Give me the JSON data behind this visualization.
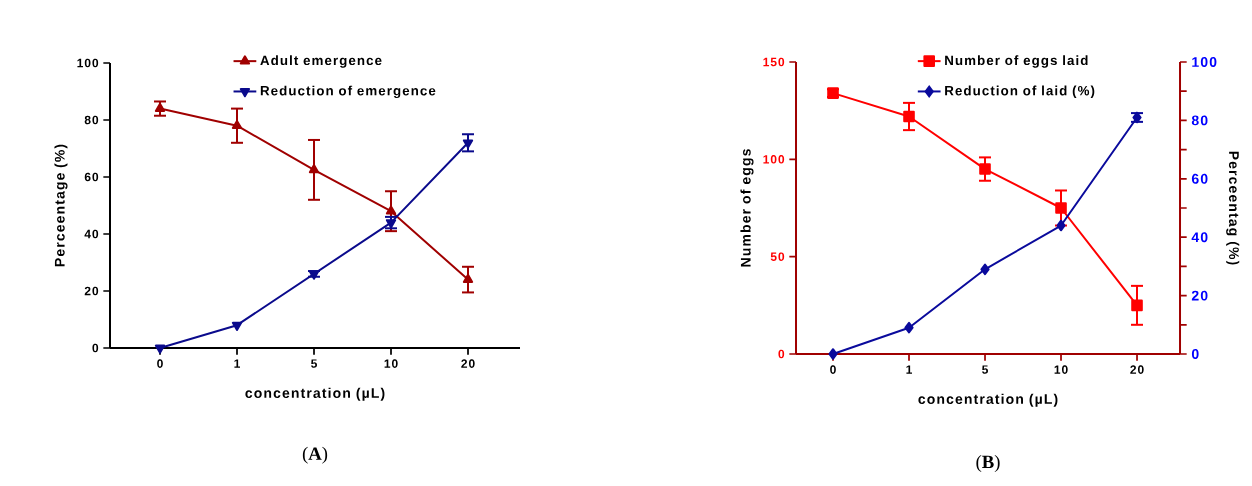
{
  "chart_data": [
    {
      "type": "line",
      "xlabel": "concentration (µL)",
      "ylabel": "Perceentage (%)",
      "categories": [
        "0",
        "1",
        "5",
        "10",
        "20"
      ],
      "ylim": [
        0,
        100
      ],
      "yticks": [
        0,
        20,
        40,
        60,
        80,
        100
      ],
      "legend": "top",
      "annotations": [
        "(**A**)"
      ],
      "series": [
        {
          "name": "Adult emergence",
          "color": "#a00000",
          "marker": "triangle",
          "values": [
            84,
            78,
            62.5,
            48,
            24
          ],
          "errors": [
            2.5,
            6,
            10.5,
            7,
            4.5
          ]
        },
        {
          "name": "Reduction of emergence",
          "color": "#0a0a8c",
          "marker": "triangle",
          "values": [
            0,
            8,
            26,
            44,
            72
          ],
          "errors": [
            null,
            null,
            1,
            2,
            3
          ]
        }
      ]
    },
    {
      "type": "line",
      "xlabel": "concentration (µL)",
      "ylabel": "Number of eggs",
      "y2label": "Perceentag (%)",
      "categories": [
        "0",
        "1",
        "5",
        "10",
        "20"
      ],
      "ylim": [
        0,
        150
      ],
      "yticks": [
        0,
        50,
        100,
        150
      ],
      "y2lim": [
        0,
        100
      ],
      "y2ticks": [
        0,
        {
          "value": 10,
          "label": null
        },
        20,
        {
          "value": 30,
          "label": null
        },
        40,
        {
          "value": 50,
          "label": null
        },
        60,
        {
          "value": 70,
          "label": null
        },
        80,
        {
          "value": 90,
          "label": null
        },
        100
      ],
      "legend": "top",
      "annotations": [
        "(**B**)"
      ],
      "series": [
        {
          "name": "Number of eggs laid",
          "color": "#ff0000",
          "marker": "square",
          "values": [
            134,
            122,
            95,
            75,
            25
          ],
          "errors": [
            2,
            7,
            6,
            9,
            10
          ]
        },
        {
          "name": "Reduction of laid (%)",
          "color": "#0a0a9c",
          "marker": "diamond",
          "axis": "y2",
          "values": [
            0,
            9,
            29,
            44,
            81
          ],
          "errors": [
            null,
            null,
            null,
            null,
            1.5
          ]
        }
      ]
    }
  ]
}
